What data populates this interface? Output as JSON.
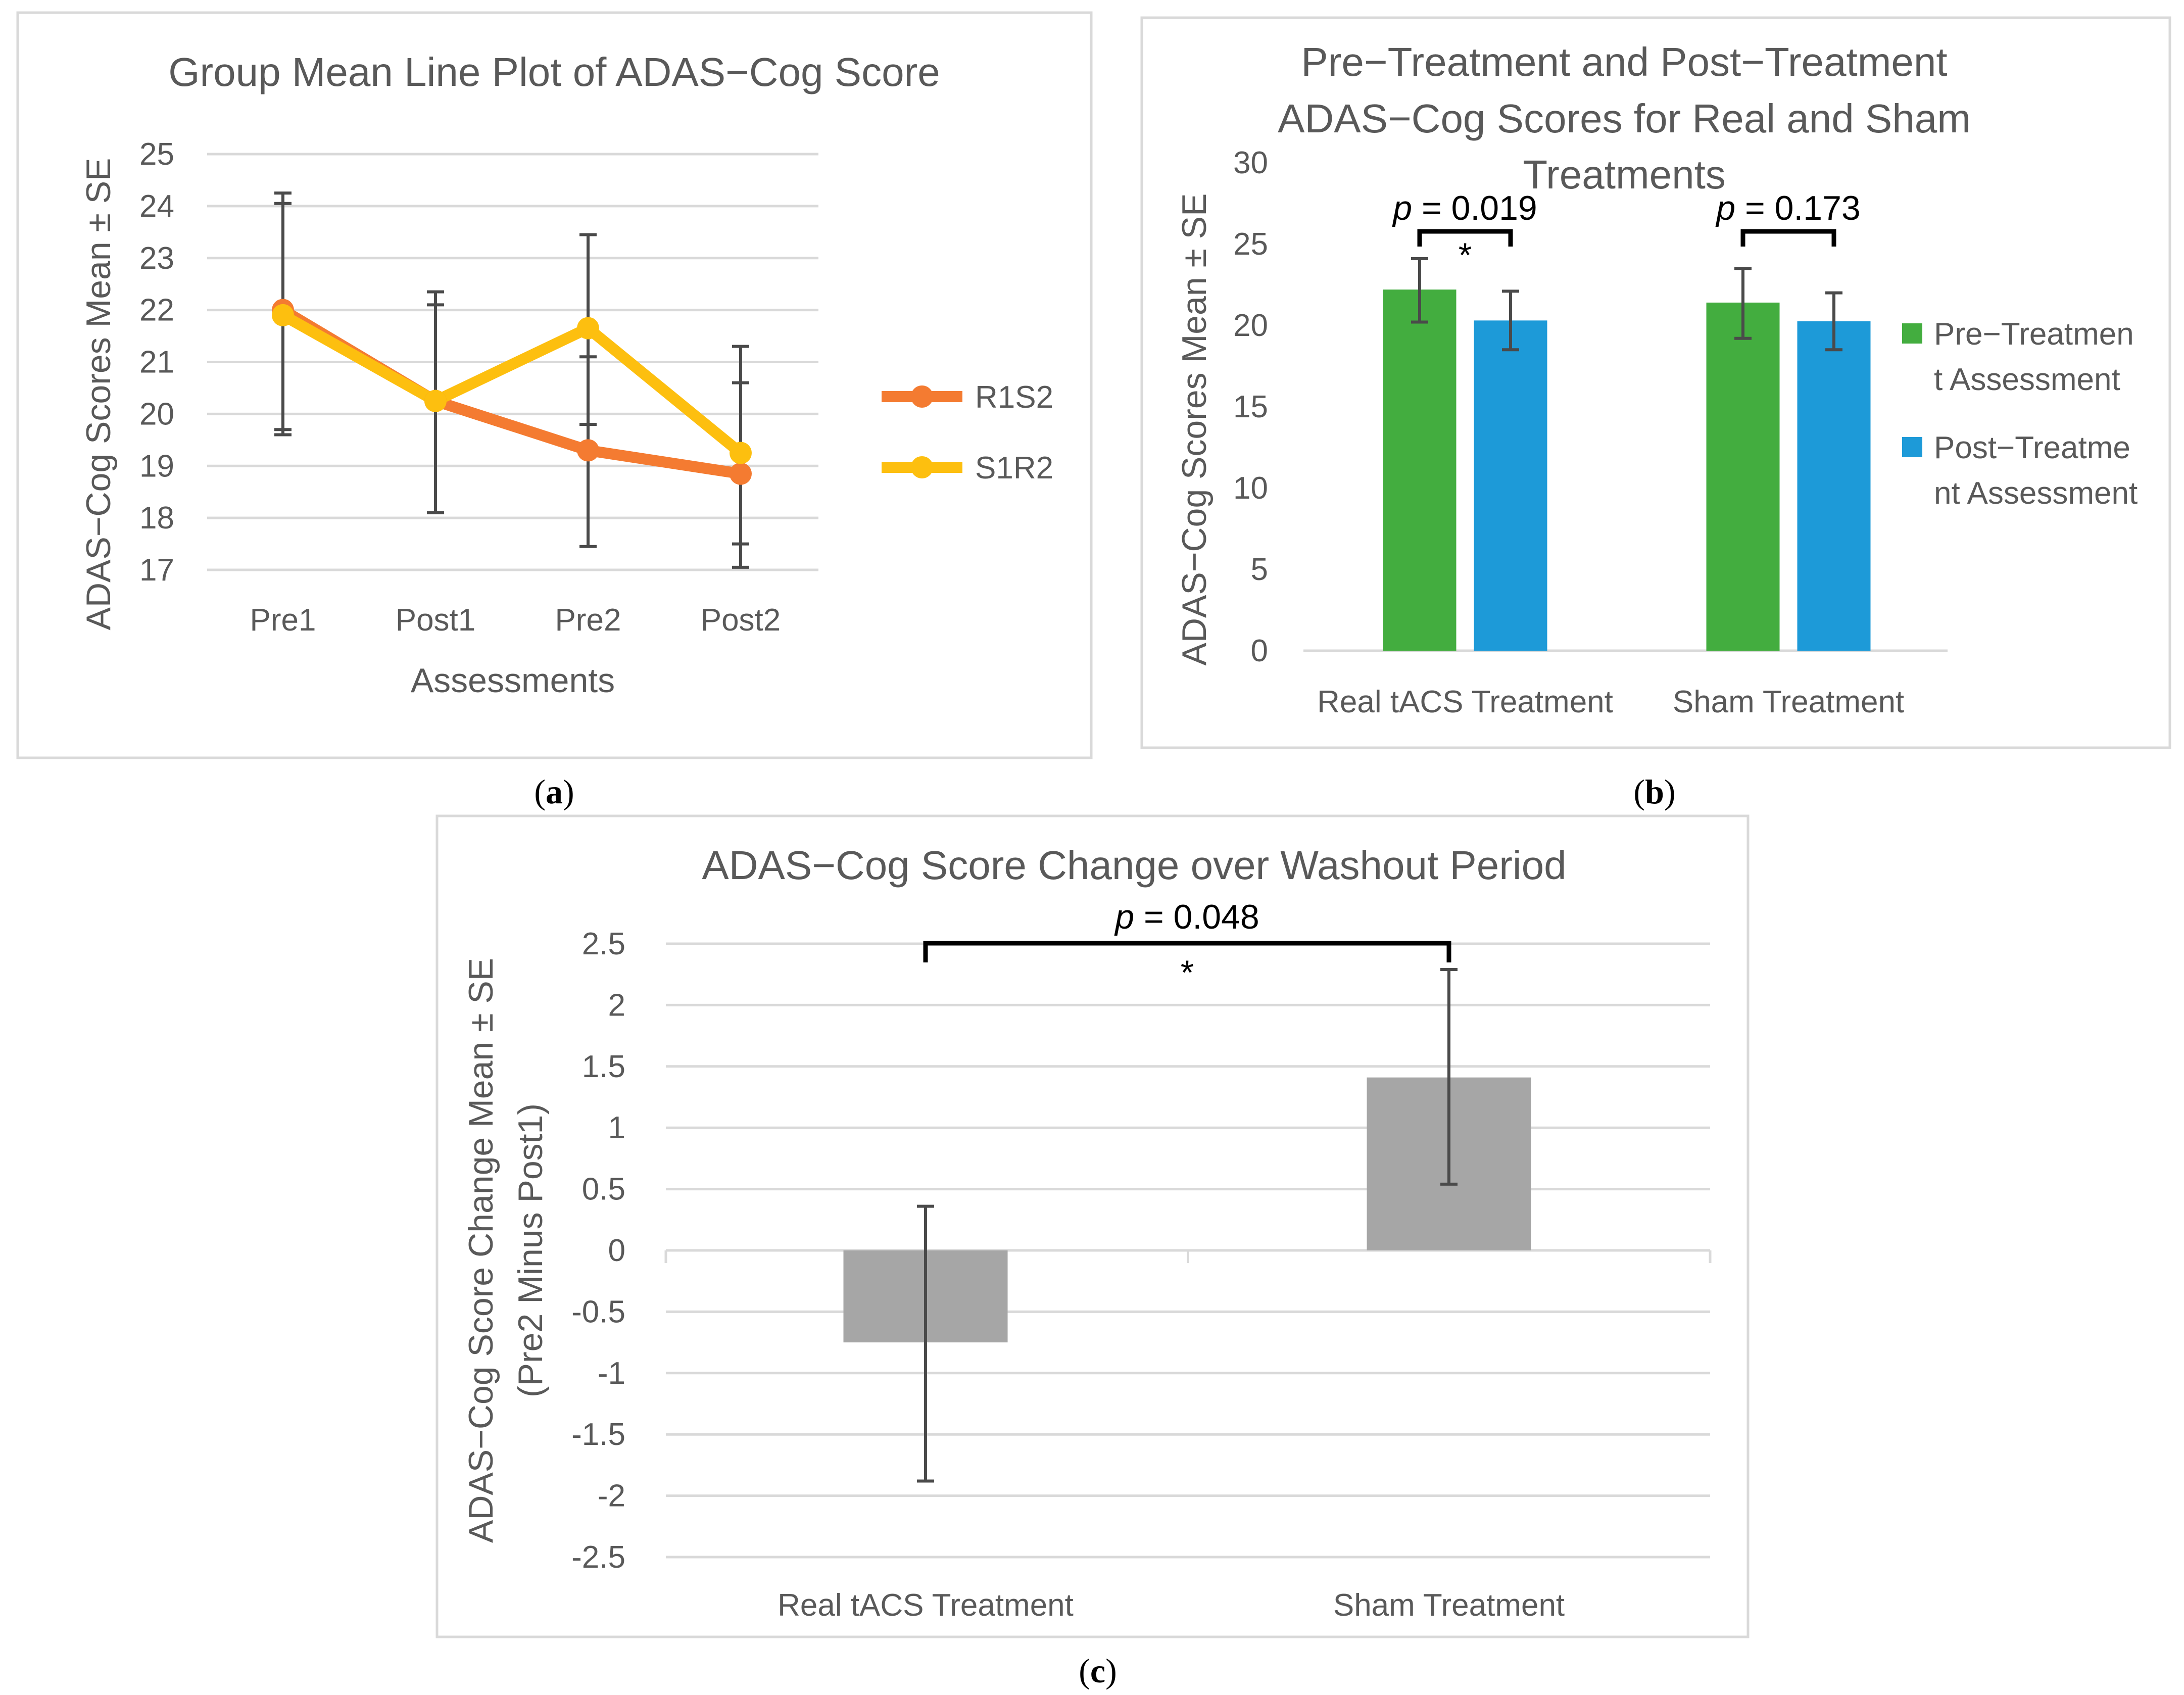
{
  "colors": {
    "r1s2": "#f47b31",
    "s1r2": "#fdbf0f",
    "pre": "#43ad3f",
    "post": "#1d9ad8",
    "change": "#a6a6a6"
  },
  "chart_data": [
    {
      "id": "a",
      "panel_label": "(a)",
      "panel_letter": "a",
      "type": "line",
      "title": "Group Mean Line Plot of ADAS−Cog Score",
      "xlabel": "Assessments",
      "ylabel": "ADAS−Cog Scores Mean ± SE",
      "ylim": [
        17,
        25
      ],
      "yticks": [
        "17",
        "18",
        "19",
        "20",
        "21",
        "22",
        "23",
        "24",
        "25"
      ],
      "categories": [
        "Pre1",
        "Post1",
        "Pre2",
        "Post2"
      ],
      "series": [
        {
          "name": "R1S2",
          "color": "#f47b31",
          "values": [
            22.0,
            20.25,
            19.3,
            18.85
          ],
          "err_low": [
            19.7,
            18.1,
            17.45,
            17.05
          ],
          "err_high": [
            24.25,
            22.1,
            21.1,
            20.6
          ]
        },
        {
          "name": "S1R2",
          "color": "#fdbf0f",
          "values": [
            21.9,
            20.25,
            21.65,
            19.25
          ],
          "err_low": [
            19.6,
            18.1,
            19.8,
            17.5
          ],
          "err_high": [
            24.05,
            22.35,
            23.45,
            21.3
          ]
        }
      ],
      "legend": "right"
    },
    {
      "id": "b",
      "panel_label": "(b)",
      "panel_letter": "b",
      "type": "bar",
      "title_lines": [
        "Pre−Treatment and Post−Treatment",
        "ADAS−Cog Scores for Real and Sham",
        "Treatments"
      ],
      "xlabel": "",
      "ylabel": "ADAS−Cog Scores Mean ± SE",
      "ylim": [
        0,
        30
      ],
      "yticks": [
        "0",
        "5",
        "10",
        "15",
        "20",
        "25",
        "30"
      ],
      "categories": [
        "Real tACS Treatment",
        "Sham Treatment"
      ],
      "series": [
        {
          "name": "Pre−Treatment Assessment",
          "legend_lines": [
            "Pre−Treatmen",
            "t Assessment"
          ],
          "color": "#43ad3f",
          "values": [
            22.2,
            21.4
          ],
          "err_low": [
            20.2,
            19.2
          ],
          "err_high": [
            24.1,
            23.5
          ]
        },
        {
          "name": "Post−Treatment Assessment",
          "legend_lines": [
            "Post−Treatme",
            "nt Assessment"
          ],
          "color": "#1d9ad8",
          "values": [
            20.3,
            20.25
          ],
          "err_low": [
            18.5,
            18.5
          ],
          "err_high": [
            22.1,
            22.0
          ]
        }
      ],
      "annotations": [
        {
          "category": 0,
          "p_label": "p",
          "p_value": " = 0.019",
          "star": "*"
        },
        {
          "category": 1,
          "p_label": "p",
          "p_value": " = 0.173",
          "star": ""
        }
      ],
      "legend": "right"
    },
    {
      "id": "c",
      "panel_label": "(c)",
      "panel_letter": "c",
      "type": "bar",
      "title": "ADAS−Cog Score Change over Washout Period",
      "xlabel": "",
      "ylabel_lines": [
        "ADAS−Cog Score Change Mean ± SE",
        "(Pre2 Minus Post1)"
      ],
      "ylim": [
        -2.5,
        2.5
      ],
      "yticks": [
        "-2.5",
        "-2",
        "-1.5",
        "-1",
        "-0.5",
        "0",
        "0.5",
        "1",
        "1.5",
        "2",
        "2.5"
      ],
      "categories": [
        "Real tACS Treatment",
        "Sham Treatment"
      ],
      "values": [
        -0.75,
        1.41
      ],
      "err_low": [
        -1.88,
        0.54
      ],
      "err_high": [
        0.36,
        2.29
      ],
      "color": "#a6a6a6",
      "annotation": {
        "p_label": "p",
        "p_value": " = 0.048",
        "star": "*"
      }
    }
  ]
}
